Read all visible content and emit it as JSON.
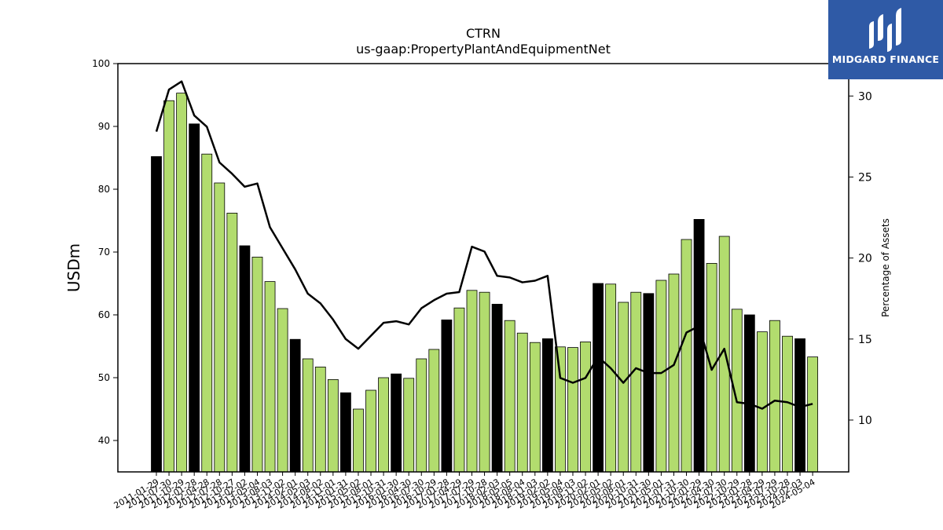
{
  "chart_data": {
    "type": "bar",
    "title": "CTRN",
    "subtitle": "us-gaap:PropertyPlantAndEquipmentNet",
    "ylabel": "USDm",
    "y2label": "Percentage of Assets",
    "ylim": [
      35,
      100
    ],
    "y2lim": [
      6.8,
      32.0
    ],
    "yticks": [
      40,
      50,
      60,
      70,
      80,
      90,
      100
    ],
    "y2ticks": [
      10,
      15,
      20,
      25,
      30
    ],
    "grid": false,
    "colors": {
      "bar_black": "#000000",
      "bar_green": "#b2dc6e",
      "line": "#000000"
    },
    "categories": [
      "2011-01-29",
      "2011-07-30",
      "2011-10-29",
      "2012-01-28",
      "2012-04-28",
      "2012-07-28",
      "2012-10-27",
      "2013-02-02",
      "2013-05-04",
      "2013-08-03",
      "2013-11-02",
      "2014-02-01",
      "2014-05-03",
      "2014-08-02",
      "2014-11-01",
      "2015-01-31",
      "2015-05-02",
      "2015-08-01",
      "2015-10-31",
      "2016-01-30",
      "2016-04-30",
      "2016-07-30",
      "2016-10-29",
      "2017-01-28",
      "2017-04-29",
      "2017-07-29",
      "2017-10-28",
      "2018-02-03",
      "2018-05-05",
      "2018-08-04",
      "2018-11-03",
      "2019-02-02",
      "2019-05-04",
      "2019-08-03",
      "2019-11-02",
      "2020-02-01",
      "2020-05-02",
      "2020-08-01",
      "2020-10-31",
      "2021-01-30",
      "2021-05-01",
      "2021-07-31",
      "2021-10-30",
      "2022-01-29",
      "2022-04-30",
      "2022-07-30",
      "2022-10-29",
      "2023-01-28",
      "2023-04-29",
      "2023-07-29",
      "2023-10-28",
      "2024-02-03",
      "2024-05-04"
    ],
    "values": [
      85.2,
      94.1,
      95.3,
      90.4,
      85.6,
      81.0,
      76.2,
      71.0,
      69.2,
      65.3,
      61.0,
      56.1,
      53.0,
      51.7,
      49.7,
      47.6,
      45.0,
      48.0,
      50.0,
      50.6,
      49.9,
      53.0,
      54.5,
      59.2,
      61.1,
      63.9,
      63.6,
      61.7,
      59.1,
      57.1,
      55.6,
      56.2,
      54.9,
      54.8,
      55.7,
      65.0,
      64.9,
      62.0,
      63.6,
      63.4,
      65.5,
      66.5,
      72.0,
      75.2,
      68.2,
      72.5,
      60.9,
      60.0,
      57.3,
      59.1,
      56.6,
      56.2,
      53.3
    ],
    "bar_fill": [
      "black",
      "green",
      "green",
      "black",
      "green",
      "green",
      "green",
      "black",
      "green",
      "green",
      "green",
      "black",
      "green",
      "green",
      "green",
      "black",
      "green",
      "green",
      "green",
      "black",
      "green",
      "green",
      "green",
      "black",
      "green",
      "green",
      "green",
      "black",
      "green",
      "green",
      "green",
      "black",
      "green",
      "green",
      "green",
      "black",
      "green",
      "green",
      "green",
      "black",
      "green",
      "green",
      "green",
      "black",
      "green",
      "green",
      "green",
      "black",
      "green",
      "green",
      "green",
      "black",
      "green"
    ],
    "series": [
      {
        "axis": "right",
        "values": [
          27.8,
          30.4,
          30.9,
          28.8,
          28.1,
          25.9,
          25.2,
          24.4,
          24.6,
          21.9,
          20.6,
          19.3,
          17.8,
          17.2,
          16.2,
          15.0,
          14.4,
          15.2,
          16.0,
          16.1,
          15.9,
          16.9,
          17.4,
          17.8,
          17.9,
          20.7,
          20.4,
          18.9,
          18.8,
          18.5,
          18.6,
          18.9,
          12.6,
          12.3,
          12.6,
          13.9,
          13.2,
          12.3,
          13.2,
          12.9,
          12.9,
          13.4,
          15.4,
          15.8,
          13.1,
          14.4,
          11.1,
          11.0,
          10.7,
          11.2,
          11.1,
          10.8,
          11.0
        ]
      }
    ]
  },
  "logo": {
    "text": "MIDGARD FINANCE"
  }
}
